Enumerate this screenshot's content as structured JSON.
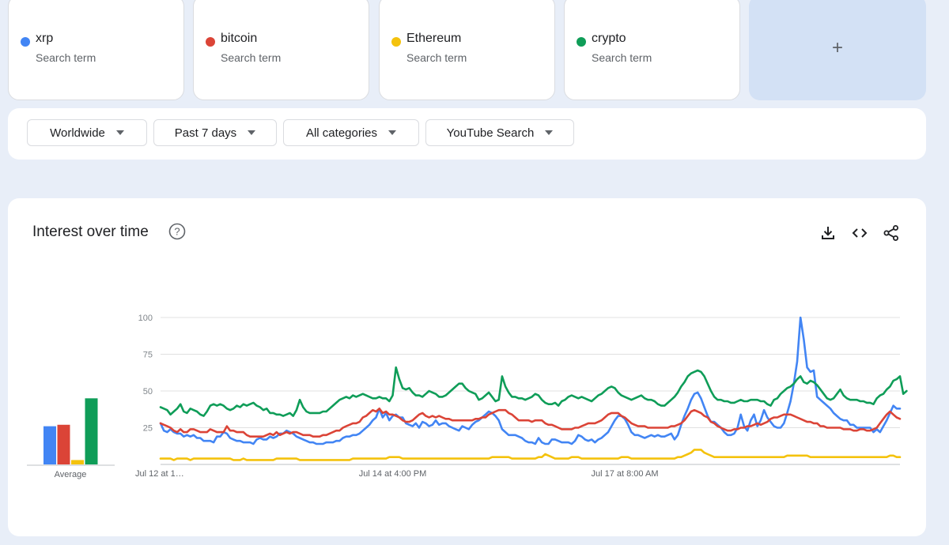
{
  "terms": [
    {
      "name": "xrp",
      "subtitle": "Search term",
      "color": "#4285f4"
    },
    {
      "name": "bitcoin",
      "subtitle": "Search term",
      "color": "#db4437"
    },
    {
      "name": "Ethereum",
      "subtitle": "Search term",
      "color": "#f4c20d"
    },
    {
      "name": "crypto",
      "subtitle": "Search term",
      "color": "#0f9d58"
    }
  ],
  "add_term_label": "+",
  "filters": {
    "region": "Worldwide",
    "time_range": "Past 7 days",
    "category": "All categories",
    "search_type": "YouTube Search"
  },
  "section": {
    "title": "Interest over time",
    "icons": [
      "help-icon",
      "download-icon",
      "embed-icon",
      "share-icon"
    ]
  },
  "chart_data": {
    "type": "line",
    "ylim": [
      0,
      100
    ],
    "yticks": [
      25,
      50,
      75,
      100
    ],
    "x_tick_labels": [
      "Jul 12 at 1…",
      "Jul 14 at 4:00 PM",
      "Jul 17 at 8:00 AM"
    ],
    "x_tick_index": [
      0,
      70,
      140
    ],
    "average": {
      "label": "Average",
      "values": [
        26,
        27,
        3,
        45
      ]
    },
    "series": [
      {
        "name": "xrp",
        "color": "#4285f4",
        "values": [
          28,
          23,
          22,
          24,
          22,
          21,
          21,
          19,
          20,
          19,
          20,
          18,
          18,
          16,
          16,
          16,
          15,
          19,
          19,
          22,
          21,
          18,
          17,
          16,
          16,
          15,
          15,
          15,
          14,
          17,
          18,
          17,
          17,
          19,
          18,
          19,
          21,
          21,
          23,
          22,
          21,
          19,
          18,
          17,
          16,
          15,
          15,
          14,
          14,
          14,
          15,
          15,
          15,
          16,
          16,
          18,
          19,
          19,
          20,
          20,
          21,
          23,
          25,
          27,
          30,
          32,
          38,
          32,
          35,
          30,
          33,
          34,
          32,
          32,
          28,
          27,
          26,
          28,
          25,
          29,
          28,
          26,
          27,
          30,
          27,
          28,
          28,
          26,
          25,
          24,
          23,
          26,
          25,
          24,
          27,
          29,
          30,
          32,
          34,
          36,
          35,
          33,
          30,
          24,
          22,
          20,
          20,
          20,
          19,
          18,
          16,
          15,
          15,
          14,
          18,
          15,
          14,
          14,
          17,
          17,
          16,
          15,
          15,
          15,
          14,
          16,
          20,
          19,
          17,
          16,
          17,
          15,
          17,
          18,
          20,
          22,
          26,
          30,
          33,
          33,
          31,
          27,
          22,
          20,
          20,
          19,
          18,
          19,
          20,
          19,
          20,
          19,
          19,
          20,
          21,
          17,
          20,
          27,
          33,
          38,
          44,
          48,
          49,
          45,
          39,
          33,
          29,
          29,
          27,
          25,
          22,
          20,
          20,
          21,
          25,
          34,
          26,
          23,
          30,
          34,
          26,
          30,
          37,
          32,
          29,
          26,
          25,
          25,
          28,
          35,
          43,
          55,
          70,
          100,
          85,
          66,
          63,
          64,
          46,
          44,
          42,
          40,
          38,
          35,
          33,
          31,
          30,
          30,
          27,
          27,
          25,
          25,
          25,
          25,
          25,
          22,
          24,
          22,
          26,
          30,
          35,
          40,
          38,
          38
        ]
      },
      {
        "name": "bitcoin",
        "color": "#db4437",
        "values": [
          28,
          27,
          26,
          25,
          23,
          22,
          24,
          22,
          22,
          24,
          24,
          23,
          22,
          22,
          22,
          24,
          23,
          22,
          22,
          22,
          26,
          23,
          23,
          22,
          22,
          22,
          20,
          19,
          19,
          19,
          19,
          19,
          20,
          21,
          20,
          22,
          20,
          21,
          22,
          21,
          22,
          22,
          21,
          20,
          20,
          20,
          19,
          19,
          19,
          20,
          20,
          21,
          22,
          23,
          23,
          25,
          26,
          27,
          28,
          28,
          29,
          32,
          33,
          35,
          37,
          36,
          38,
          35,
          36,
          34,
          34,
          33,
          32,
          30,
          29,
          29,
          30,
          32,
          34,
          35,
          33,
          32,
          33,
          32,
          33,
          32,
          31,
          31,
          30,
          30,
          30,
          30,
          30,
          30,
          30,
          31,
          31,
          32,
          32,
          34,
          35,
          36,
          37,
          37,
          37,
          35,
          34,
          32,
          30,
          30,
          30,
          30,
          29,
          30,
          30,
          30,
          28,
          27,
          27,
          26,
          25,
          24,
          24,
          24,
          24,
          25,
          25,
          26,
          27,
          28,
          28,
          28,
          29,
          30,
          32,
          34,
          35,
          35,
          35,
          33,
          32,
          30,
          28,
          27,
          26,
          26,
          26,
          25,
          25,
          25,
          25,
          25,
          25,
          25,
          26,
          26,
          27,
          28,
          30,
          33,
          36,
          37,
          36,
          35,
          33,
          32,
          29,
          28,
          26,
          25,
          24,
          23,
          23,
          24,
          24,
          25,
          25,
          26,
          26,
          27,
          28,
          27,
          28,
          29,
          31,
          32,
          32,
          33,
          34,
          34,
          34,
          33,
          32,
          31,
          30,
          29,
          29,
          28,
          28,
          26,
          26,
          25,
          25,
          25,
          25,
          25,
          24,
          24,
          24,
          23,
          23,
          24,
          24,
          23,
          23,
          24,
          25,
          28,
          31,
          34,
          36,
          34,
          32,
          31
        ]
      },
      {
        "name": "Ethereum",
        "color": "#f4c20d",
        "values": [
          4,
          4,
          4,
          4,
          3,
          4,
          4,
          4,
          4,
          3,
          4,
          4,
          4,
          4,
          4,
          4,
          4,
          4,
          4,
          4,
          4,
          4,
          3,
          3,
          3,
          4,
          3,
          3,
          3,
          3,
          3,
          3,
          3,
          3,
          3,
          4,
          4,
          4,
          4,
          4,
          4,
          4,
          3,
          3,
          3,
          3,
          3,
          3,
          3,
          3,
          3,
          3,
          3,
          3,
          3,
          3,
          3,
          3,
          4,
          4,
          4,
          4,
          4,
          4,
          4,
          4,
          4,
          4,
          4,
          5,
          5,
          5,
          5,
          4,
          4,
          4,
          4,
          4,
          4,
          4,
          4,
          4,
          4,
          4,
          4,
          4,
          4,
          4,
          4,
          4,
          4,
          4,
          4,
          4,
          4,
          4,
          4,
          4,
          4,
          4,
          5,
          5,
          5,
          5,
          5,
          5,
          4,
          4,
          4,
          4,
          4,
          4,
          4,
          4,
          5,
          5,
          7,
          6,
          5,
          4,
          4,
          4,
          4,
          4,
          5,
          5,
          5,
          4,
          4,
          4,
          4,
          4,
          4,
          4,
          4,
          4,
          4,
          4,
          4,
          5,
          5,
          5,
          4,
          4,
          4,
          4,
          4,
          4,
          4,
          4,
          4,
          4,
          4,
          4,
          4,
          4,
          5,
          5,
          6,
          7,
          8,
          10,
          10,
          10,
          8,
          7,
          6,
          5,
          5,
          5,
          5,
          5,
          5,
          5,
          5,
          5,
          5,
          5,
          5,
          5,
          5,
          5,
          5,
          5,
          5,
          5,
          5,
          5,
          5,
          6,
          6,
          6,
          6,
          6,
          6,
          6,
          5,
          5,
          5,
          5,
          5,
          5,
          5,
          5,
          5,
          5,
          5,
          5,
          5,
          5,
          5,
          5,
          5,
          5,
          5,
          5,
          5,
          5,
          5,
          5,
          6,
          6,
          5,
          5
        ]
      },
      {
        "name": "crypto",
        "color": "#0f9d58",
        "values": [
          39,
          38,
          37,
          34,
          36,
          38,
          41,
          36,
          35,
          38,
          37,
          36,
          34,
          33,
          36,
          40,
          41,
          40,
          41,
          40,
          38,
          37,
          38,
          40,
          39,
          41,
          40,
          41,
          42,
          40,
          39,
          37,
          38,
          35,
          35,
          34,
          34,
          33,
          34,
          35,
          33,
          37,
          44,
          39,
          36,
          35,
          35,
          35,
          35,
          36,
          36,
          38,
          40,
          42,
          44,
          45,
          46,
          45,
          47,
          46,
          47,
          48,
          47,
          46,
          45,
          45,
          46,
          45,
          45,
          43,
          47,
          66,
          58,
          52,
          51,
          52,
          49,
          47,
          47,
          46,
          48,
          50,
          49,
          48,
          46,
          46,
          47,
          49,
          51,
          53,
          55,
          55,
          52,
          50,
          49,
          48,
          44,
          45,
          47,
          49,
          46,
          43,
          44,
          60,
          53,
          49,
          46,
          46,
          45,
          45,
          44,
          45,
          46,
          48,
          47,
          44,
          42,
          41,
          41,
          42,
          40,
          43,
          44,
          46,
          47,
          46,
          45,
          46,
          45,
          44,
          43,
          45,
          47,
          48,
          50,
          52,
          53,
          52,
          49,
          47,
          46,
          45,
          44,
          45,
          46,
          47,
          45,
          44,
          44,
          43,
          41,
          40,
          40,
          42,
          44,
          46,
          49,
          53,
          56,
          60,
          62,
          63,
          64,
          63,
          60,
          55,
          50,
          46,
          44,
          44,
          43,
          43,
          42,
          42,
          43,
          44,
          43,
          43,
          44,
          44,
          44,
          43,
          43,
          41,
          40,
          44,
          45,
          48,
          50,
          52,
          53,
          55,
          58,
          60,
          56,
          55,
          57,
          56,
          54,
          51,
          48,
          45,
          44,
          45,
          48,
          51,
          47,
          45,
          44,
          44,
          44,
          43,
          43,
          42,
          42,
          41,
          45,
          47,
          48,
          51,
          53,
          57,
          58,
          60,
          48,
          50
        ]
      }
    ]
  }
}
